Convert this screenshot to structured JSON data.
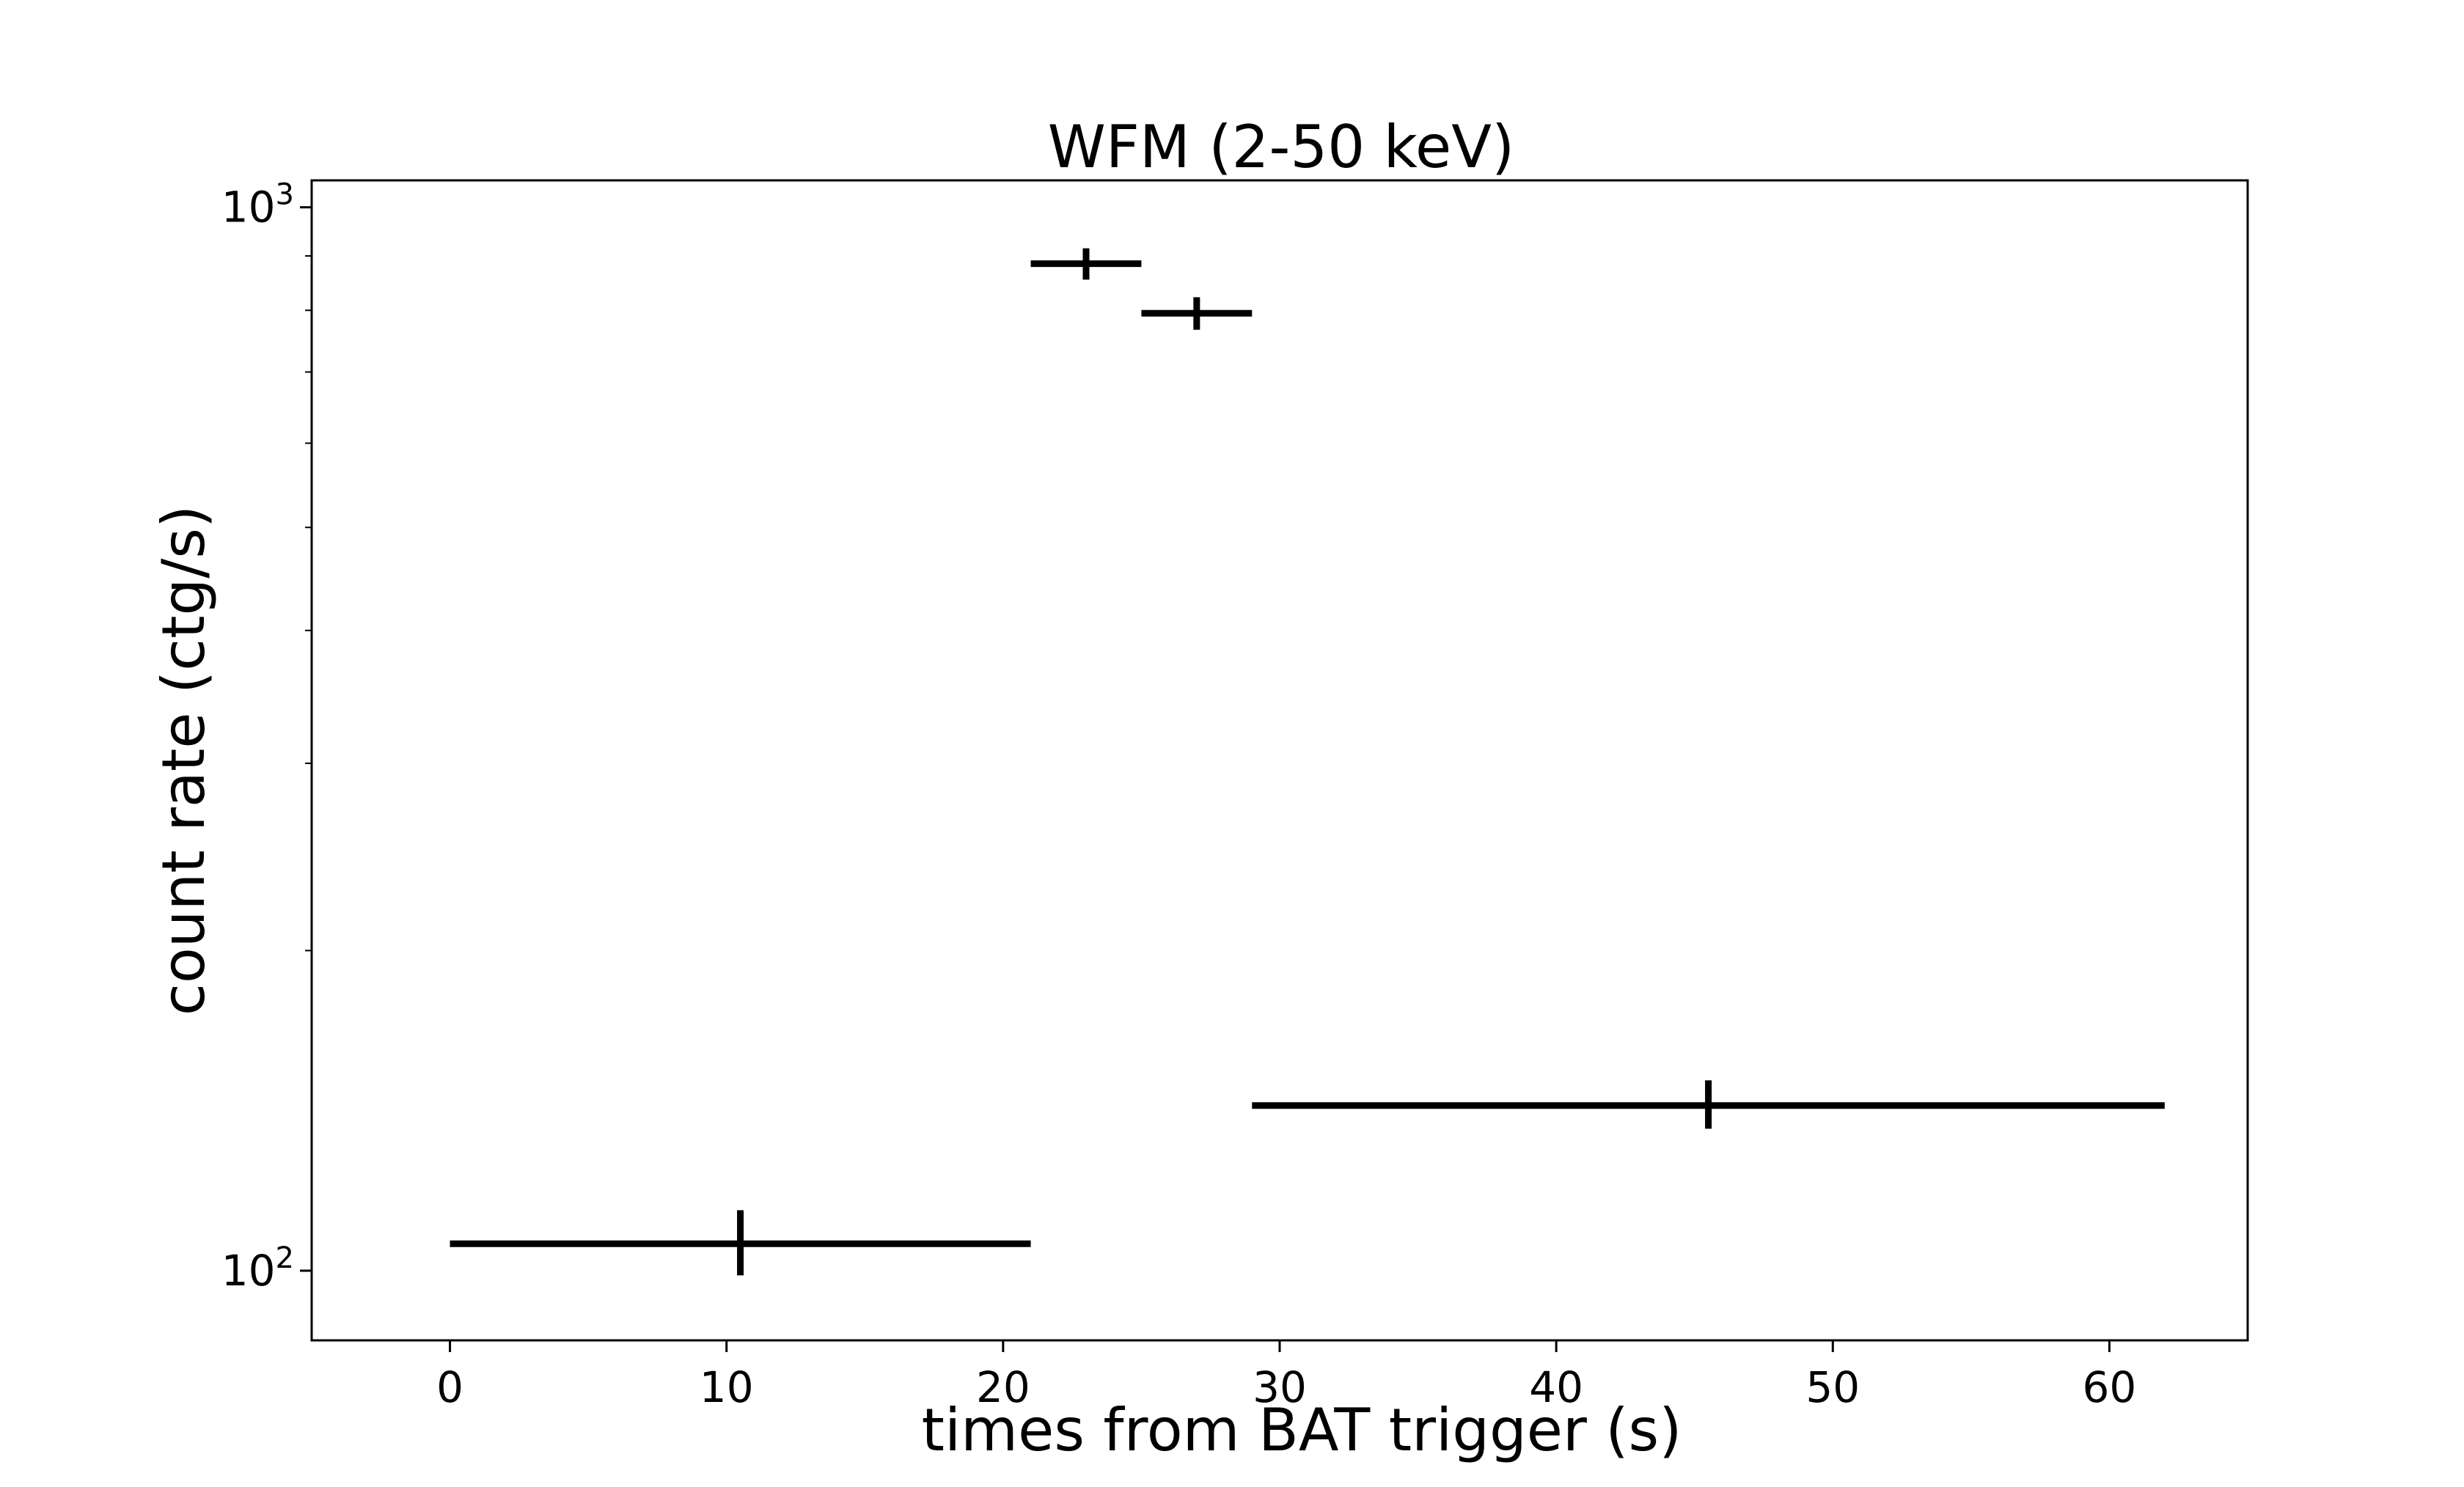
{
  "chart_data": {
    "type": "scatter",
    "title": "WFM (2-50 keV)",
    "xlabel": "times from BAT trigger (s)",
    "ylabel": "count rate (ctg/s)",
    "xlim": [
      -5,
      65
    ],
    "ylim": [
      86,
      1060
    ],
    "yscale": "log",
    "grid": false,
    "legend": "none",
    "x_ticks": [
      0,
      10,
      20,
      30,
      40,
      50,
      60
    ],
    "y_ticks": [
      {
        "value": 100,
        "base": "10",
        "exp": "2"
      },
      {
        "value": 1000,
        "base": "10",
        "exp": "3"
      }
    ],
    "y_minor_ticks": [
      200,
      300,
      400,
      500,
      600,
      700,
      800,
      900
    ],
    "color": "#000000",
    "points": [
      {
        "x": 10.5,
        "x_lo": 0,
        "x_hi": 21,
        "y": 106,
        "y_lo": 99,
        "y_hi": 114
      },
      {
        "x": 23,
        "x_lo": 21,
        "x_hi": 25,
        "y": 885,
        "y_lo": 855,
        "y_hi": 915
      },
      {
        "x": 27,
        "x_lo": 25,
        "x_hi": 29,
        "y": 795,
        "y_lo": 767,
        "y_hi": 823
      },
      {
        "x": 45.5,
        "x_lo": 29,
        "x_hi": 62,
        "y": 143,
        "y_lo": 136,
        "y_hi": 151
      }
    ]
  }
}
